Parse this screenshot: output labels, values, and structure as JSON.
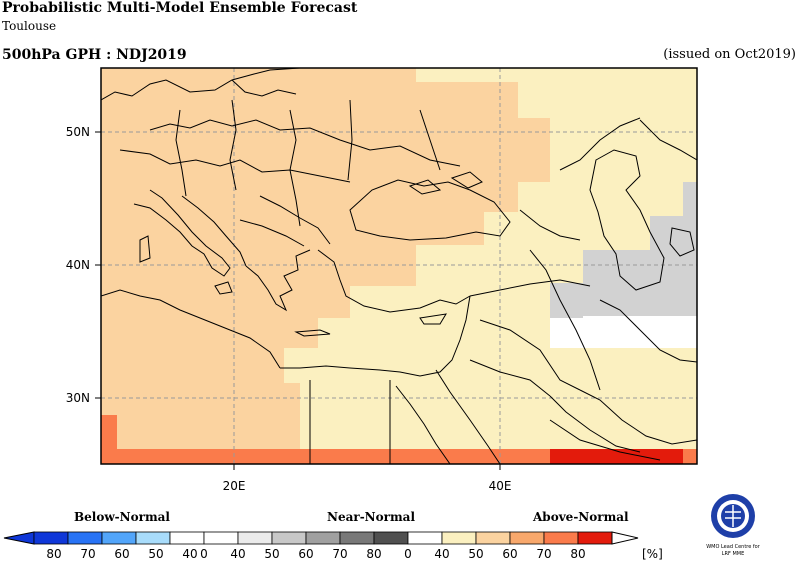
{
  "header": {
    "title": "Probabilistic Multi-Model Ensemble Forecast",
    "subtitle": "Toulouse",
    "variable": "500hPa GPH : NDJ2019",
    "issued": "(issued on Oct2019)"
  },
  "map": {
    "lat_labels": [
      "50N",
      "40N",
      "30N"
    ],
    "lon_labels": [
      "20E",
      "40E"
    ],
    "colors": {
      "above_40_50": "#fbf0c0",
      "above_50_60": "#fbd3a0",
      "above_60_70": "#fa7b4b",
      "above_70_80": "#e31b0c",
      "near_40_50": "#d2d2d2",
      "white": "#ffffff"
    }
  },
  "legend": {
    "categories": [
      "Below-Normal",
      "Near-Normal",
      "Above-Normal"
    ],
    "below_ticks": [
      "80",
      "70",
      "60",
      "50",
      "40"
    ],
    "near_ticks": [
      "0",
      "40",
      "50",
      "60",
      "70",
      "80"
    ],
    "above_ticks": [
      "0",
      "40",
      "50",
      "60",
      "70",
      "80"
    ],
    "unit": "[%]",
    "colors": {
      "below": [
        "#0f37d8",
        "#2873f5",
        "#52a5fa",
        "#a8dcfb",
        "#ffffff"
      ],
      "near": [
        "#ffffff",
        "#ebebeb",
        "#c8c8c8",
        "#a0a0a0",
        "#787878",
        "#505050"
      ],
      "above": [
        "#ffffff",
        "#fbf0c0",
        "#fbd3a0",
        "#f8a86c",
        "#fa7b4b",
        "#e31b0c"
      ]
    }
  },
  "logo": {
    "line1": "WMO Lead Centre for",
    "line2": "LRF MME"
  }
}
